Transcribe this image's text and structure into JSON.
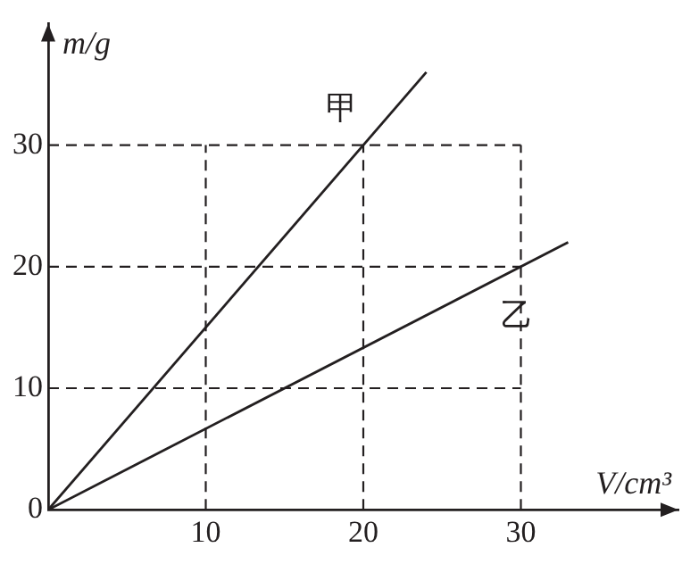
{
  "chart_data": {
    "type": "line",
    "xlabel": "V/cm³",
    "ylabel": "m/g",
    "series": [
      {
        "name": "甲",
        "color": "#231f20",
        "x": [
          0,
          24
        ],
        "values": [
          0,
          36
        ]
      },
      {
        "name": "乙",
        "color": "#231f20",
        "x": [
          0,
          33
        ],
        "values": [
          0,
          22
        ]
      }
    ],
    "xlim": [
      0,
      40
    ],
    "ylim": [
      0,
      40
    ],
    "xticks": [
      {
        "value": 0,
        "label": null
      },
      10,
      20,
      30
    ],
    "yticks": [
      0,
      10,
      20,
      30
    ],
    "grid": true,
    "legend": false,
    "marker": "none",
    "line_style": "solid"
  }
}
